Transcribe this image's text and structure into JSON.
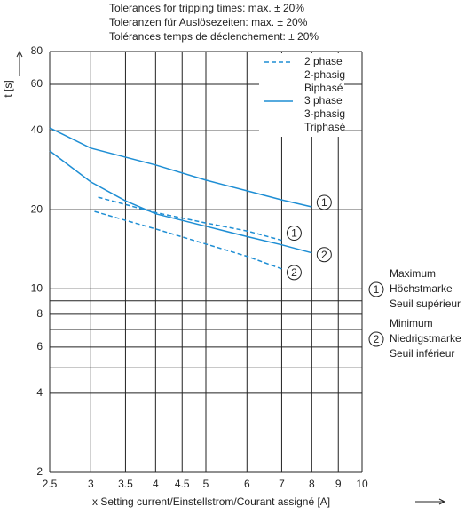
{
  "chart_data": {
    "type": "line",
    "title": [
      "Tolerances for tripping times: max. ± 20%",
      "Toleranzen für Auslösezeiten: max. ± 20%",
      "Tolérances temps de déclenchement: ± 20%"
    ],
    "y_label": "t [s]",
    "x_label": "x Setting current/Einstellstrom/Courant assigné [A]",
    "log_x": true,
    "log_y": true,
    "grid": true,
    "xlim": [
      2.5,
      10
    ],
    "ylim": [
      2,
      80
    ],
    "xticks": [
      2.5,
      3,
      3.5,
      4,
      4.5,
      5,
      6,
      7,
      8,
      9,
      10
    ],
    "yticks": [
      2,
      4,
      6,
      8,
      10,
      20,
      40,
      60,
      80
    ],
    "yminor": [
      5,
      7,
      9
    ],
    "series": [
      {
        "name": [
          "2 phase",
          "2-phasig",
          "Biphasé"
        ],
        "color": "#1e8ed4",
        "dashed": true,
        "curves": [
          {
            "label": "1",
            "x": [
              3.1,
              4,
              5,
              6,
              7
            ],
            "values": [
              22.3,
              19.5,
              17.8,
              16.6,
              15.3
            ]
          },
          {
            "label": "2",
            "x": [
              3.05,
              4,
              5,
              6,
              7
            ],
            "values": [
              19.7,
              16.9,
              14.8,
              13.3,
              11.9
            ]
          }
        ]
      },
      {
        "name": [
          "3 phase",
          "3-phasig",
          "Triphasé"
        ],
        "color": "#1e8ed4",
        "dashed": false,
        "curves": [
          {
            "label": "1",
            "x": [
              2.5,
              3,
              4,
              5,
              6,
              7,
              8
            ],
            "values": [
              41,
              34.3,
              29.6,
              25.9,
              23.6,
              21.8,
              20.5
            ]
          },
          {
            "label": "2",
            "x": [
              2.5,
              3,
              3.5,
              4,
              5,
              6,
              7,
              8
            ],
            "values": [
              33.5,
              25.5,
              21.6,
              19.3,
              17.3,
              15.8,
              14.7,
              13.7
            ]
          }
        ]
      }
    ],
    "marker_key": [
      {
        "label": "1",
        "lines": [
          "Maximum",
          "Höchstmarke",
          "Seuil supérieur"
        ]
      },
      {
        "label": "2",
        "lines": [
          "Minimum",
          "Niedrigstmarke",
          "Seuil inférieur"
        ]
      }
    ]
  }
}
